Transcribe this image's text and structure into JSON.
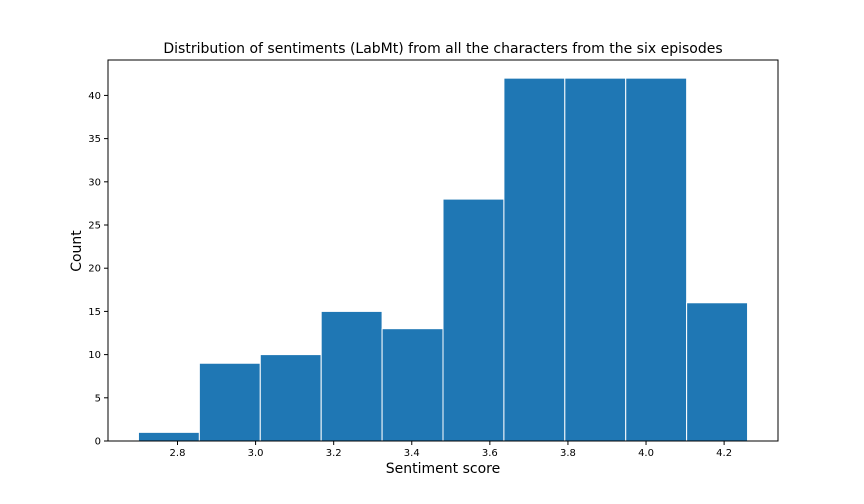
{
  "chart_data": {
    "type": "bar",
    "title": "Distribution of sentiments (LabMt) from all the characters from the six episodes",
    "xlabel": "Sentiment score",
    "ylabel": "Count",
    "bin_edges": [
      2.7,
      2.856,
      3.012,
      3.168,
      3.324,
      3.48,
      3.636,
      3.792,
      3.948,
      4.104,
      4.26
    ],
    "values": [
      1,
      9,
      10,
      15,
      13,
      28,
      42,
      42,
      42,
      16
    ],
    "xlim": [
      2.622,
      4.338
    ],
    "ylim": [
      0,
      44.1
    ],
    "xticks": [
      2.8,
      3.0,
      3.2,
      3.4,
      3.6,
      3.8,
      4.0,
      4.2
    ],
    "xtick_labels": [
      "2.8",
      "3.0",
      "3.2",
      "3.4",
      "3.6",
      "3.8",
      "4.0",
      "4.2"
    ],
    "yticks": [
      0,
      5,
      10,
      15,
      20,
      25,
      30,
      35,
      40
    ],
    "ytick_labels": [
      "0",
      "5",
      "10",
      "15",
      "20",
      "25",
      "30",
      "35",
      "40"
    ],
    "bar_color": "#1f77b4",
    "edge_color": "#ffffff",
    "grid": false,
    "legend": "none"
  }
}
